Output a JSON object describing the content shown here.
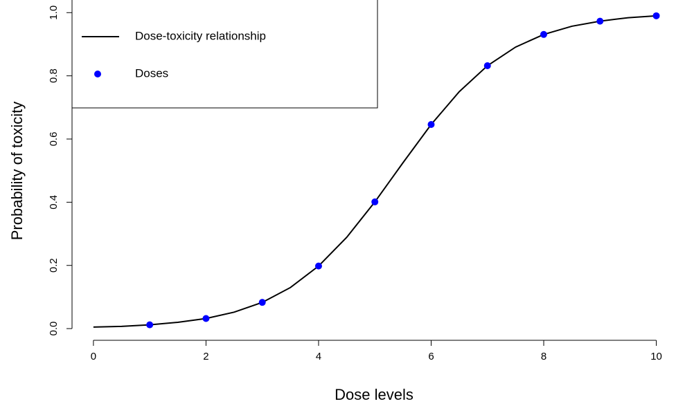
{
  "chart_data": {
    "type": "line",
    "xlabel": "Dose levels",
    "ylabel": "Probability of toxicity",
    "xlim": [
      -0.38,
      10.35
    ],
    "xticks": [
      0,
      2,
      4,
      6,
      8,
      10
    ],
    "ylim": [
      -0.037,
      1.04
    ],
    "yticks": [
      {
        "value": 0,
        "label": "0.0"
      },
      {
        "value": 0.2,
        "label": "0.2"
      },
      {
        "value": 0.4,
        "label": "0.4"
      },
      {
        "value": 0.6,
        "label": "0.6"
      },
      {
        "value": 0.8,
        "label": "0.8"
      },
      {
        "value": 1,
        "label": "1.0"
      }
    ],
    "legend": "top-left",
    "series": [
      {
        "name": "Dose-toxicity relationship",
        "color": "#000000",
        "kind": "line",
        "x": [
          0,
          0.5,
          1,
          1.5,
          2,
          2.5,
          3,
          3.5,
          4,
          4.5,
          5,
          5.5,
          6,
          6.5,
          7,
          7.5,
          8,
          8.5,
          9,
          9.5,
          10
        ],
        "values": [
          0.005,
          0.007,
          0.012,
          0.02,
          0.032,
          0.052,
          0.083,
          0.13,
          0.198,
          0.289,
          0.401,
          0.525,
          0.646,
          0.75,
          0.832,
          0.891,
          0.931,
          0.957,
          0.973,
          0.984,
          0.99
        ]
      },
      {
        "name": "Doses",
        "color": "#0000ff",
        "kind": "points",
        "x": [
          1,
          2,
          3,
          4,
          5,
          6,
          7,
          8,
          9,
          10
        ],
        "values": [
          0.012,
          0.032,
          0.083,
          0.198,
          0.401,
          0.646,
          0.832,
          0.931,
          0.973,
          0.99
        ]
      }
    ]
  }
}
